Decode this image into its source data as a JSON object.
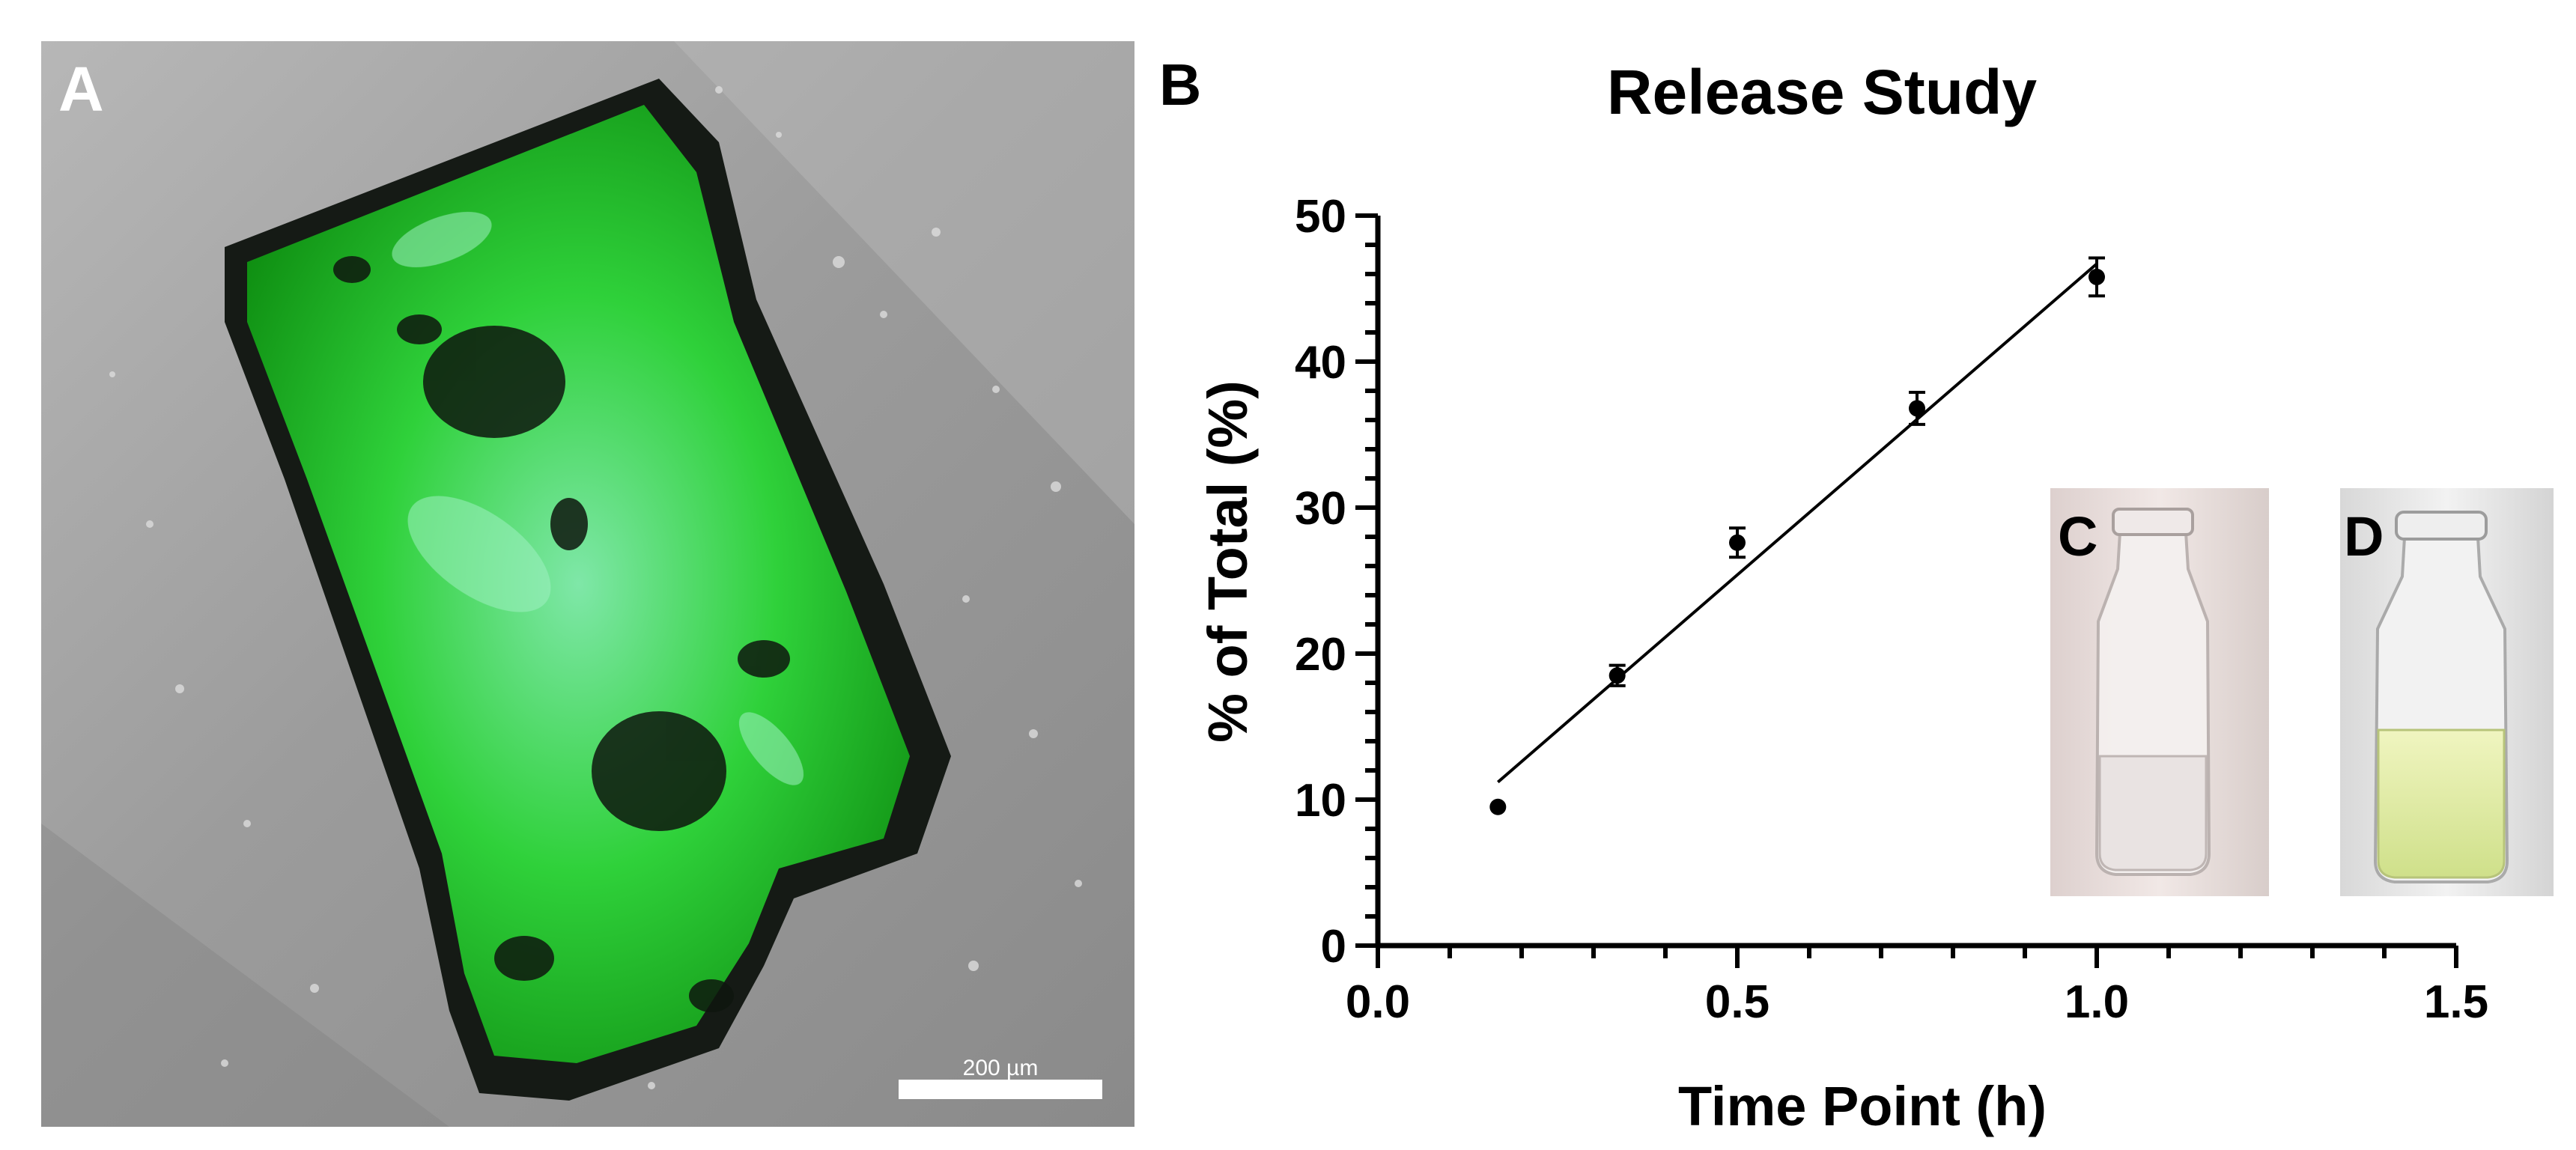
{
  "panels": {
    "a": {
      "label": "A",
      "scale_bar_label": "200 µm"
    },
    "b": {
      "label": "B"
    },
    "c": {
      "label": "C"
    },
    "d": {
      "label": "D"
    }
  },
  "chart_data": {
    "type": "scatter",
    "title": "Release Study",
    "xlabel": "Time Point (h)",
    "ylabel": "% of Total (%)",
    "xlim": [
      0.0,
      1.5
    ],
    "ylim": [
      0,
      50
    ],
    "x_ticks": [
      "0.0",
      "0.5",
      "1.0",
      "1.5"
    ],
    "y_ticks": [
      "0",
      "10",
      "20",
      "30",
      "40",
      "50"
    ],
    "x_minor_step": 0.1,
    "y_minor_step": 2,
    "grid": false,
    "series": [
      {
        "x": [
          0.167,
          0.333,
          0.5,
          0.75,
          1.0
        ],
        "y": [
          9.5,
          18.5,
          27.6,
          36.8,
          45.8
        ],
        "error": [
          0.4,
          0.7,
          1.0,
          1.1,
          1.3
        ]
      }
    ],
    "fit_line": {
      "x": [
        0.167,
        1.0
      ],
      "y": [
        11.2,
        46.7
      ]
    }
  },
  "colors": {
    "fluorescence": "#1fd11f",
    "background_gray": "#9a9a9a",
    "vial_d_liquid": "#e8f0a8"
  }
}
